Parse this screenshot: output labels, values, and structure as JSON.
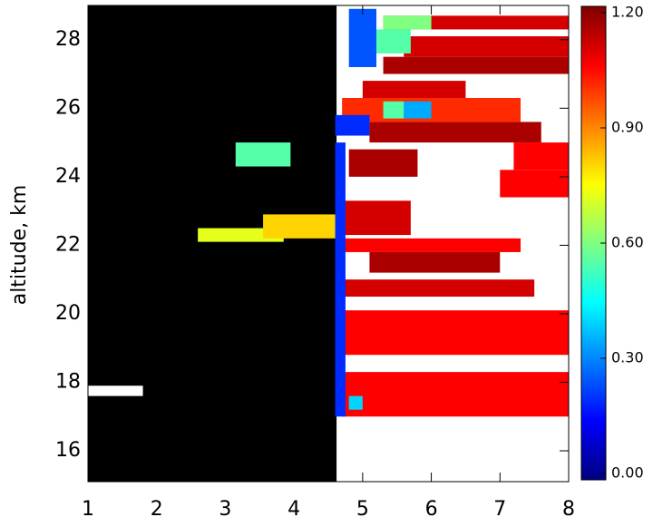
{
  "chart_data": {
    "type": "heatmap",
    "ylabel": "altitude, km",
    "xlim": [
      1,
      8
    ],
    "ylim": [
      15.1,
      29
    ],
    "xticks": [
      1,
      2,
      3,
      4,
      5,
      6,
      7,
      8
    ],
    "yticks": [
      16,
      18,
      20,
      22,
      24,
      26,
      28
    ],
    "colormap": "jet",
    "clim": [
      0,
      1.2
    ],
    "cticks": [
      {
        "value": 0,
        "label": "0.00"
      },
      {
        "value": 0.3,
        "label": "0.30"
      },
      {
        "value": 0.6,
        "label": "0.60"
      },
      {
        "value": 0.9,
        "label": "0.90"
      },
      {
        "value": 1.2,
        "label": "1.20"
      }
    ],
    "regions": [
      {
        "x": [
          1,
          4.62
        ],
        "y": [
          15.1,
          29
        ],
        "color": "#000000"
      },
      {
        "x": [
          1,
          1.8
        ],
        "y": [
          17.6,
          17.9
        ],
        "color": "#ffffff"
      }
    ],
    "cells": [
      {
        "x": [
          3.15,
          3.95
        ],
        "y": [
          24.3,
          25
        ],
        "value": 0.55
      },
      {
        "x": [
          2.6,
          3.85
        ],
        "y": [
          22.1,
          22.5
        ],
        "value": 0.72
      },
      {
        "x": [
          3.55,
          4.65
        ],
        "y": [
          22.2,
          22.9
        ],
        "value": 0.8
      },
      {
        "x": [
          4.7,
          8
        ],
        "y": [
          17,
          18.3
        ],
        "value": 1.05
      },
      {
        "x": [
          4.8,
          5.0
        ],
        "y": [
          17.2,
          17.6
        ],
        "value": 0.4
      },
      {
        "x": [
          4.7,
          8
        ],
        "y": [
          18.8,
          20.1
        ],
        "value": 1.05
      },
      {
        "x": [
          4.7,
          7.5
        ],
        "y": [
          20.5,
          21
        ],
        "value": 1.1
      },
      {
        "x": [
          5.1,
          7
        ],
        "y": [
          21.2,
          21.8
        ],
        "value": 1.15
      },
      {
        "x": [
          4.7,
          7.3
        ],
        "y": [
          21.8,
          22.2
        ],
        "value": 1.05
      },
      {
        "x": [
          4.7,
          5.7
        ],
        "y": [
          22.3,
          23.3
        ],
        "value": 1.1
      },
      {
        "x": [
          7,
          8
        ],
        "y": [
          23.4,
          24.2
        ],
        "value": 1.05
      },
      {
        "x": [
          7.2,
          8
        ],
        "y": [
          24.2,
          25
        ],
        "value": 1.05
      },
      {
        "x": [
          4.8,
          5.8
        ],
        "y": [
          24,
          24.8
        ],
        "value": 1.15
      },
      {
        "x": [
          5.1,
          7.6
        ],
        "y": [
          25,
          25.6
        ],
        "value": 1.15
      },
      {
        "x": [
          4.7,
          7.3
        ],
        "y": [
          25.6,
          26.3
        ],
        "value": 1.0
      },
      {
        "x": [
          5.3,
          5.6
        ],
        "y": [
          25.7,
          26.2
        ],
        "value": 0.55
      },
      {
        "x": [
          5.6,
          6
        ],
        "y": [
          25.7,
          26.2
        ],
        "value": 0.35
      },
      {
        "x": [
          4.6,
          5.1
        ],
        "y": [
          25.2,
          25.8
        ],
        "value": 0.2
      },
      {
        "x": [
          5,
          6.5
        ],
        "y": [
          26.3,
          26.8
        ],
        "value": 1.1
      },
      {
        "x": [
          5.3,
          8
        ],
        "y": [
          27,
          27.5
        ],
        "value": 1.15
      },
      {
        "x": [
          5.6,
          8
        ],
        "y": [
          27.5,
          28.1
        ],
        "value": 1.1
      },
      {
        "x": [
          5.2,
          5.7
        ],
        "y": [
          27.6,
          28.3
        ],
        "value": 0.55
      },
      {
        "x": [
          5.3,
          8
        ],
        "y": [
          28.3,
          28.7
        ],
        "value": 1.1
      },
      {
        "x": [
          5.3,
          6
        ],
        "y": [
          28.3,
          28.7
        ],
        "value": 0.6
      },
      {
        "x": [
          4.8,
          5.2
        ],
        "y": [
          27.2,
          28.9
        ],
        "value": 0.25
      },
      {
        "x": [
          4.6,
          4.75
        ],
        "y": [
          17,
          25
        ],
        "value": 0.2
      }
    ]
  }
}
